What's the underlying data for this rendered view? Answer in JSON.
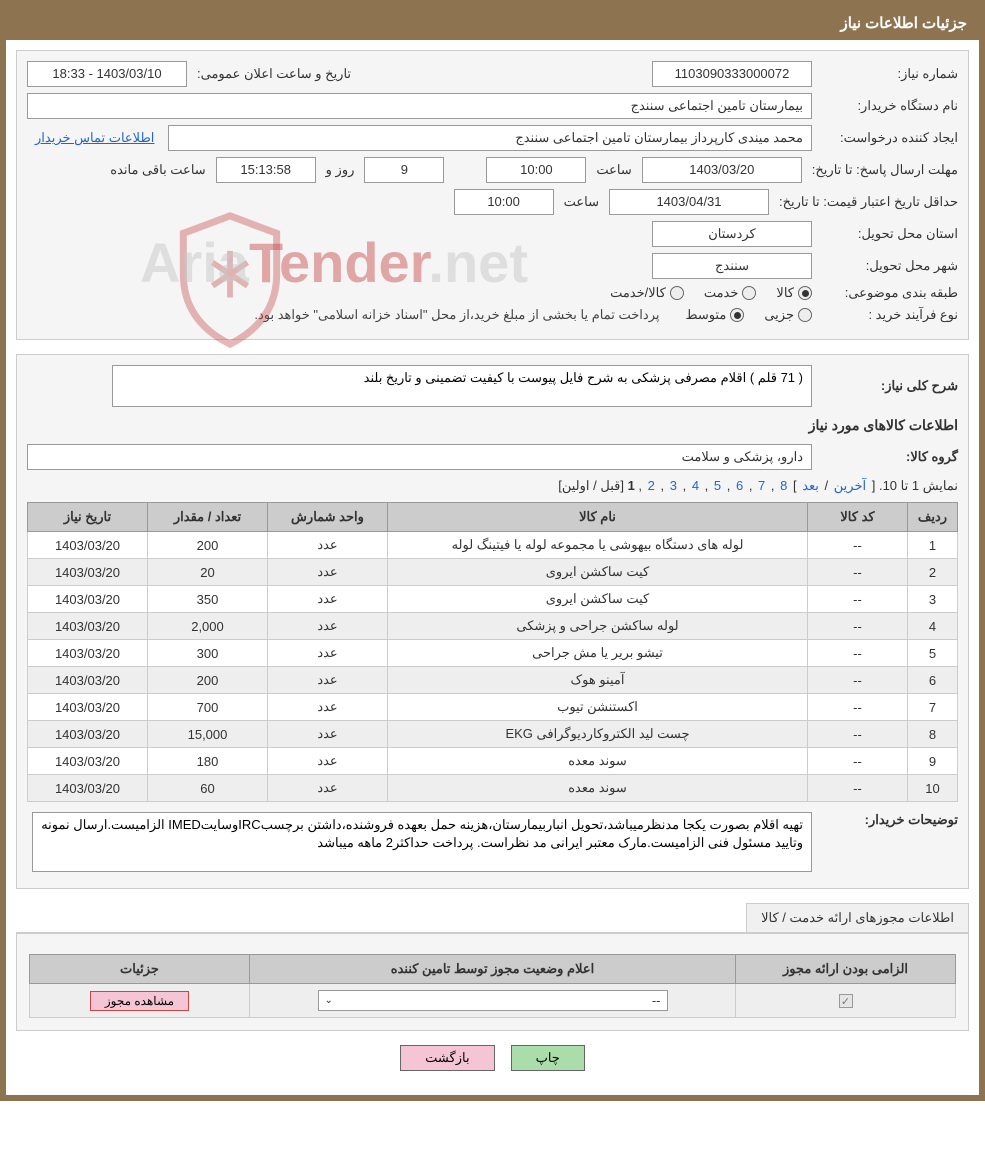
{
  "header": {
    "title": "جزئیات اطلاعات نیاز"
  },
  "form": {
    "needNumber": {
      "label": "شماره نیاز:",
      "value": "1103090333000072"
    },
    "publicAnnounce": {
      "label": "تاریخ و ساعت اعلان عمومی:",
      "value": "1403/03/10 - 18:33"
    },
    "buyerOrg": {
      "label": "نام دستگاه خریدار:",
      "value": "بیمارستان تامین اجتماعی سنندج"
    },
    "requester": {
      "label": "ایجاد کننده درخواست:",
      "value": "محمد میندی کارپرداز بیمارستان تامین اجتماعی سنندج"
    },
    "buyerContactLink": "اطلاعات تماس خریدار",
    "deadline": {
      "label": "مهلت ارسال پاسخ: تا تاریخ:",
      "date": "1403/03/20",
      "timeLabel": "ساعت",
      "time": "10:00",
      "daysRemaining": "9",
      "daysLabel": "روز و",
      "timeRemaining": "15:13:58",
      "remainingLabel": "ساعت باقی مانده"
    },
    "priceValidity": {
      "label": "حداقل تاریخ اعتبار قیمت: تا تاریخ:",
      "date": "1403/04/31",
      "timeLabel": "ساعت",
      "time": "10:00"
    },
    "deliveryProvince": {
      "label": "استان محل تحویل:",
      "value": "کردستان"
    },
    "deliveryCity": {
      "label": "شهر محل تحویل:",
      "value": "سنندج"
    },
    "subjectClass": {
      "label": "طبقه بندی موضوعی:",
      "options": [
        "کالا",
        "خدمت",
        "کالا/خدمت"
      ],
      "selected": 0
    },
    "purchaseType": {
      "label": "نوع فرآیند خرید :",
      "options": [
        "جزیی",
        "متوسط"
      ],
      "selected": 1,
      "note": "پرداخت تمام یا بخشی از مبلغ خرید،از محل \"اسناد خزانه اسلامی\" خواهد بود."
    },
    "needDescription": {
      "label": "شرح کلی نیاز:",
      "value": "( 71 قلم ) اقلام مصرفی پزشکی به شرح فایل پیوست با کیفیت تضمینی و تاریخ بلند"
    },
    "goodsInfo": {
      "title": "اطلاعات کالاهای مورد نیاز"
    },
    "goodsGroup": {
      "label": "گروه کالا:",
      "value": "دارو، پزشکی و سلامت"
    }
  },
  "pagination": {
    "prefix": "نمایش 1 تا 10.",
    "last": "آخرین",
    "next": "بعد",
    "pages": [
      "8",
      "7",
      "6",
      "5",
      "4",
      "3",
      "2"
    ],
    "current": "1",
    "prev": "قبل",
    "first": "اولین"
  },
  "table": {
    "columns": [
      "ردیف",
      "کد کالا",
      "نام کالا",
      "واحد شمارش",
      "تعداد / مقدار",
      "تاریخ نیاز"
    ],
    "rows": [
      [
        "1",
        "--",
        "لوله های دستگاه بیهوشی یا مجموعه لوله یا فیتینگ لوله",
        "عدد",
        "200",
        "1403/03/20"
      ],
      [
        "2",
        "--",
        "کیت ساکشن ایروی",
        "عدد",
        "20",
        "1403/03/20"
      ],
      [
        "3",
        "--",
        "کیت ساکشن ایروی",
        "عدد",
        "350",
        "1403/03/20"
      ],
      [
        "4",
        "--",
        "لوله ساکشن جراحی و پزشکی",
        "عدد",
        "2,000",
        "1403/03/20"
      ],
      [
        "5",
        "--",
        "تیشو بریر یا مش جراحی",
        "عدد",
        "300",
        "1403/03/20"
      ],
      [
        "6",
        "--",
        "آمینو هوک",
        "عدد",
        "200",
        "1403/03/20"
      ],
      [
        "7",
        "--",
        "اکستنشن تیوب",
        "عدد",
        "700",
        "1403/03/20"
      ],
      [
        "8",
        "--",
        "چست لید الکتروکاردیوگرافی EKG",
        "عدد",
        "15,000",
        "1403/03/20"
      ],
      [
        "9",
        "--",
        "سوند معده",
        "عدد",
        "180",
        "1403/03/20"
      ],
      [
        "10",
        "--",
        "سوند معده",
        "عدد",
        "60",
        "1403/03/20"
      ]
    ]
  },
  "buyerNotes": {
    "label": "توضیحات خریدار:",
    "value": "تهیه اقلام بصورت یکجا مدنظرمیباشد،تحویل انباربیمارستان،هزینه حمل بعهده فروشنده،داشتن برچسبIRCوسایتIMED الزامیست.ارسال نمونه وتایید مسئول فنی الزامیست.مارک معتبر ایرانی مد نظراست. پرداخت حداکثر2 ماهه میباشد"
  },
  "license": {
    "tabTitle": "اطلاعات مجوزهای ارائه خدمت / کالا",
    "columns": [
      "الزامی بودن ارائه مجوز",
      "اعلام وضعیت مجوز توسط تامین کننده",
      "جزئیات"
    ],
    "row": {
      "mandatory": true,
      "statusSelected": "--",
      "detailButton": "مشاهده مجوز"
    }
  },
  "footer": {
    "printBtn": "چاپ",
    "backBtn": "بازگشت"
  },
  "watermark": {
    "text1": "Aria",
    "text2": "Tender",
    "text3": ".net"
  }
}
